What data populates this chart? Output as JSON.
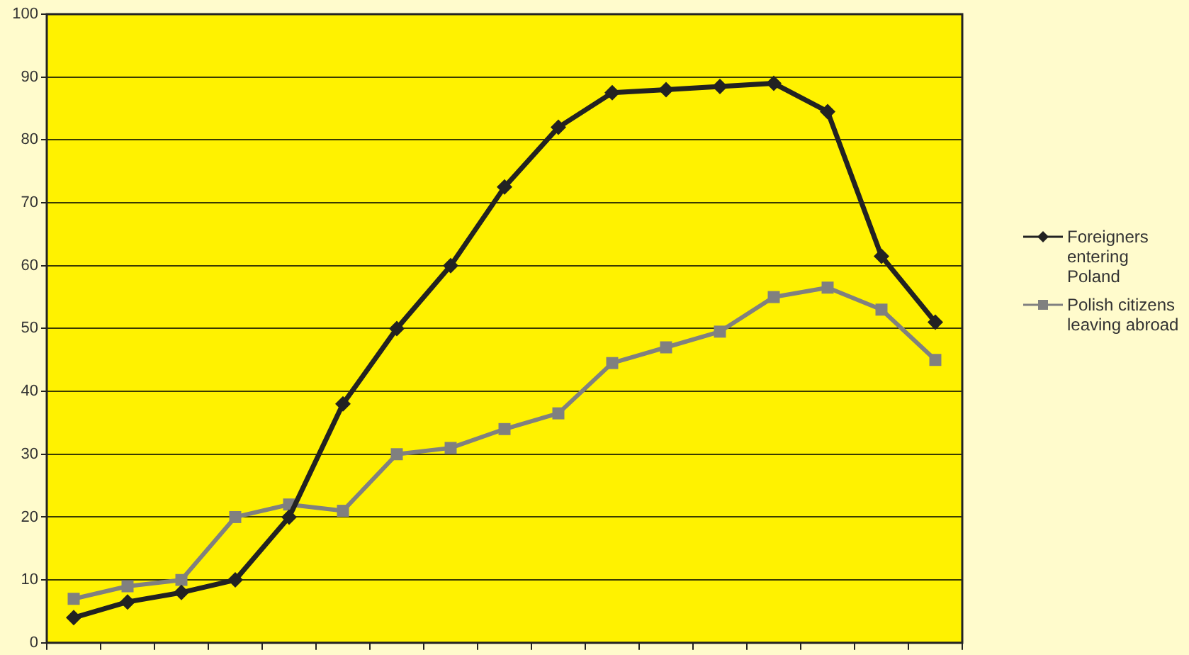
{
  "chart_data": {
    "type": "line",
    "categories": [
      null,
      null,
      null,
      null,
      null,
      null,
      null,
      null,
      null,
      null,
      null,
      null,
      null,
      null,
      null,
      null,
      null
    ],
    "series": [
      {
        "name": "Foreigners entering Poland",
        "color": "#222222",
        "marker": "diamond",
        "values": [
          4,
          6.5,
          8,
          10,
          20,
          38,
          50,
          60,
          72.5,
          82,
          87.5,
          88,
          88.5,
          89,
          84.5,
          61.5,
          51
        ]
      },
      {
        "name": "Polish citizens leaving abroad",
        "color": "#808080",
        "marker": "square",
        "values": [
          7,
          9,
          10,
          20,
          22,
          21,
          30,
          31,
          34,
          36.5,
          44.5,
          47,
          49.5,
          55,
          56.5,
          53,
          45
        ]
      }
    ],
    "ylim": [
      0,
      100
    ],
    "yticks": [
      0,
      10,
      20,
      30,
      40,
      50,
      60,
      70,
      80,
      90,
      100
    ],
    "grid": "y",
    "legend": "right",
    "line_style": "solid"
  }
}
